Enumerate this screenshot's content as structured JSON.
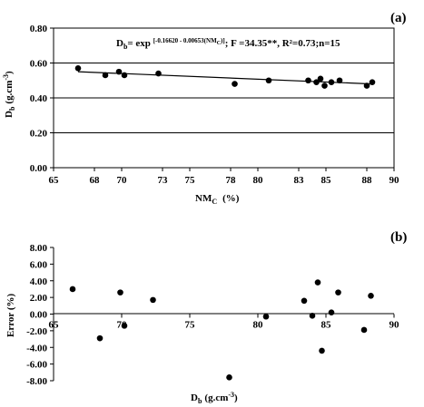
{
  "chart_data": [
    {
      "type": "scatter",
      "panel_label": "(a)",
      "xlabel": "NM",
      "xlabel_sub": "C",
      "xlabel_unit": "(%)",
      "ylabel": "D",
      "ylabel_sub": "b",
      "ylabel_unit": "(g.cm",
      "ylabel_sup": "-3",
      "ylabel_close": ")",
      "xlim": [
        65,
        90
      ],
      "ylim": [
        0,
        0.8
      ],
      "xticks": [
        "65",
        "68",
        "70",
        "73",
        "75",
        "78",
        "80",
        "83",
        "85",
        "88",
        "90"
      ],
      "yticks": [
        "0.00",
        "0.20",
        "0.40",
        "0.60",
        "0.80"
      ],
      "grid": "horizontal",
      "equation": {
        "lhs": "D",
        "lhs_sub": "b",
        "eq": "= exp ",
        "exponent": "[-0.16620 - 0.00653(NM",
        "exponent_sub": "C",
        "exponent_close": ")]",
        "stats": "; F =34.35**, R²=0.73;n=15"
      },
      "points": [
        {
          "x": 66.8,
          "y": 0.57
        },
        {
          "x": 68.8,
          "y": 0.53
        },
        {
          "x": 69.8,
          "y": 0.55
        },
        {
          "x": 70.2,
          "y": 0.53
        },
        {
          "x": 72.7,
          "y": 0.54
        },
        {
          "x": 78.3,
          "y": 0.48
        },
        {
          "x": 80.8,
          "y": 0.5
        },
        {
          "x": 83.7,
          "y": 0.5
        },
        {
          "x": 84.3,
          "y": 0.49
        },
        {
          "x": 84.6,
          "y": 0.51
        },
        {
          "x": 84.9,
          "y": 0.47
        },
        {
          "x": 85.4,
          "y": 0.49
        },
        {
          "x": 86.0,
          "y": 0.5
        },
        {
          "x": 88.0,
          "y": 0.47
        },
        {
          "x": 88.4,
          "y": 0.49
        }
      ],
      "fit": {
        "x": [
          66.8,
          88.4
        ],
        "y": [
          0.55,
          0.48
        ]
      }
    },
    {
      "type": "scatter",
      "panel_label": "(b)",
      "xlabel": "D",
      "xlabel_sub": "b",
      "xlabel_unit": "(g.cm",
      "xlabel_sup": "-3",
      "xlabel_close": ")",
      "ylabel": "Error  (%)",
      "xlim": [
        65,
        90
      ],
      "ylim": [
        -8,
        8
      ],
      "xticks": [
        "65",
        "70",
        "75",
        "80",
        "85",
        "90"
      ],
      "yticks": [
        "8.00",
        "6.00",
        "4.00",
        "2.00",
        "0.00",
        "-2.00",
        "-4.00",
        "-6.00",
        "-8.00"
      ],
      "grid": "none",
      "points": [
        {
          "x": 66.4,
          "y": 3.0
        },
        {
          "x": 68.4,
          "y": -2.9
        },
        {
          "x": 69.9,
          "y": 2.6
        },
        {
          "x": 70.2,
          "y": -1.4
        },
        {
          "x": 72.3,
          "y": 1.7
        },
        {
          "x": 77.9,
          "y": -7.6
        },
        {
          "x": 80.6,
          "y": -0.3
        },
        {
          "x": 83.4,
          "y": 1.6
        },
        {
          "x": 84.0,
          "y": -0.2
        },
        {
          "x": 84.4,
          "y": 3.8
        },
        {
          "x": 84.7,
          "y": -4.4
        },
        {
          "x": 85.4,
          "y": 0.2
        },
        {
          "x": 85.9,
          "y": 2.6
        },
        {
          "x": 87.8,
          "y": -1.9
        },
        {
          "x": 88.3,
          "y": 2.2
        }
      ]
    }
  ]
}
